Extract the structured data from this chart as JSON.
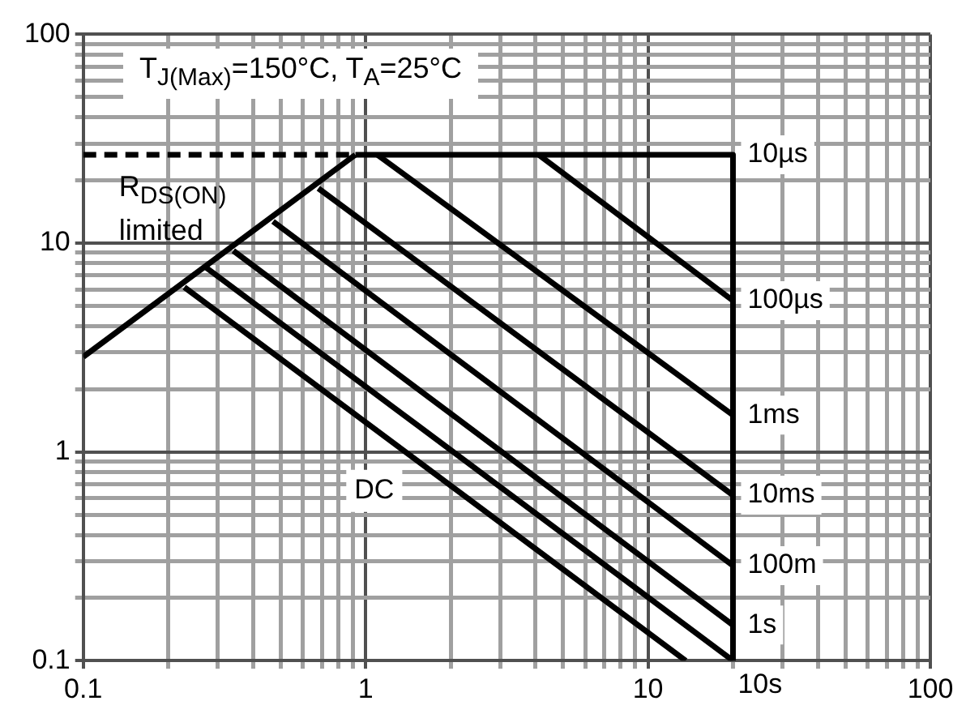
{
  "chart_data": {
    "type": "line",
    "log": "xy",
    "xlim": [
      0.1,
      100
    ],
    "ylim": [
      0.1,
      100
    ],
    "xticks": [
      0.1,
      1,
      10,
      100
    ],
    "yticks": [
      0.1,
      1,
      10,
      100
    ],
    "grid": true,
    "legend": false,
    "marker": "none",
    "annotations": [
      "T$_{J(Max)}$=150°C, T$_{A}$=25°C",
      {
        "text": "R$_{DS(ON)}$ limited",
        "x": 0.1,
        "y": 26.5
      }
    ],
    "series": [
      {
        "color": "#000000",
        "x": [
          0.1,
          0.92
        ],
        "values": [
          2.85,
          26.5
        ]
      },
      {
        "color": "#000000",
        "x": [
          0.1,
          0.92
        ],
        "values": [
          26.5,
          26.5
        ],
        "line_style": "dashed"
      },
      {
        "name": "10µs",
        "color": "#000000",
        "x": [
          0.92,
          20,
          20
        ],
        "values": [
          26.5,
          26.5,
          0.1
        ]
      },
      {
        "name": "100µs",
        "color": "#000000",
        "x": [
          4.1,
          20
        ],
        "values": [
          26.5,
          5.3
        ]
      },
      {
        "name": "1ms",
        "color": "#000000",
        "x": [
          1.1,
          20
        ],
        "values": [
          26.5,
          1.5
        ]
      },
      {
        "name": "10ms",
        "color": "#000000",
        "x": [
          0.68,
          20
        ],
        "values": [
          18.3,
          0.62
        ]
      },
      {
        "name": "100m",
        "color": "#000000",
        "x": [
          0.47,
          20
        ],
        "values": [
          12.7,
          0.285
        ]
      },
      {
        "name": "1s",
        "color": "#000000",
        "x": [
          0.34,
          20
        ],
        "values": [
          9.2,
          0.148
        ]
      },
      {
        "name": "10s",
        "color": "#000000",
        "x": [
          0.27,
          20
        ],
        "values": [
          7.7,
          0.1
        ]
      },
      {
        "name": "DC",
        "color": "#000000",
        "x": [
          0.228,
          13.6
        ],
        "values": [
          6.15,
          0.1
        ]
      }
    ]
  }
}
